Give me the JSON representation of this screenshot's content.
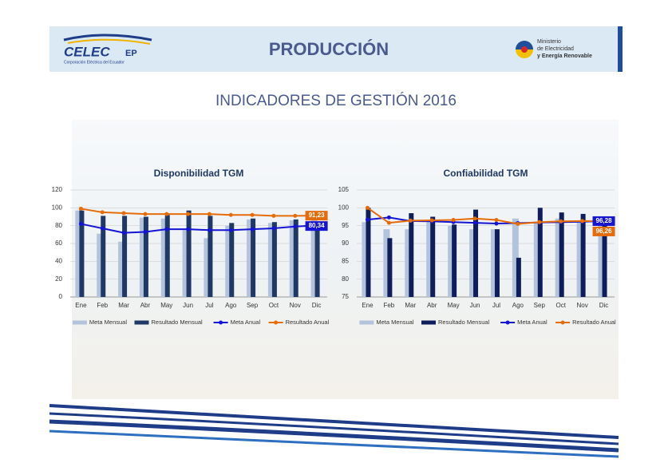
{
  "header": {
    "brand": "CELEC",
    "brand_suffix": "EP",
    "brand_tagline": "Corporación Eléctrica del Ecuador",
    "section": "PRODUCCIÓN",
    "ministry": [
      "Ministerio",
      "de Electricidad",
      "y Energía Renovable"
    ],
    "title": "INDICADORES DE GESTIÓN 2016"
  },
  "chart_data": [
    {
      "type": "bar",
      "title": "Disponibilidad TGM",
      "categories": [
        "Ene",
        "Feb",
        "Mar",
        "Abr",
        "May",
        "Jun",
        "Jul",
        "Ago",
        "Sep",
        "Oct",
        "Nov",
        "Dic"
      ],
      "ylim": [
        0,
        120
      ],
      "yticks": [
        0,
        20,
        40,
        60,
        80,
        100,
        120
      ],
      "grid": true,
      "series": [
        {
          "name": "Meta Mensual",
          "type": "bar",
          "color": "#b4c3dc",
          "values": [
            97,
            71,
            62,
            89,
            88,
            75,
            66,
            80,
            87,
            83,
            86,
            90
          ]
        },
        {
          "name": "Resultado Mensual",
          "type": "bar",
          "color": "#1f3864",
          "values": [
            97,
            91,
            91,
            90,
            92,
            97,
            91,
            83,
            88,
            84,
            87,
            83
          ]
        },
        {
          "name": "Meta Anual",
          "type": "line",
          "color": "#1414d2",
          "values": [
            82,
            77,
            72,
            73,
            76,
            76,
            75,
            75,
            76,
            77,
            79,
            80.34
          ],
          "value_labels": [
            null,
            null,
            null,
            null,
            null,
            null,
            null,
            null,
            null,
            null,
            null,
            "80,34"
          ]
        },
        {
          "name": "Resultado Anual",
          "type": "line",
          "color": "#e46c0a",
          "values": [
            99,
            95,
            94,
            93,
            93,
            93,
            93,
            92,
            92,
            91,
            91,
            91.23
          ],
          "value_labels": [
            null,
            null,
            null,
            null,
            null,
            null,
            null,
            null,
            null,
            null,
            null,
            "91,23"
          ]
        }
      ]
    },
    {
      "type": "bar",
      "title": "Confiabilidad TGM",
      "categories": [
        "Ene",
        "Feb",
        "Mar",
        "Abr",
        "May",
        "Jun",
        "Jul",
        "Ago",
        "Sep",
        "Oct",
        "Nov",
        "Dic"
      ],
      "ylim": [
        75,
        105
      ],
      "yticks": [
        75,
        80,
        85,
        90,
        95,
        100,
        105
      ],
      "grid": true,
      "series": [
        {
          "name": "Meta Mensual",
          "type": "bar",
          "color": "#b4c3dc",
          "values": [
            96,
            94,
            94,
            96,
            95,
            94,
            94,
            97,
            96,
            97,
            96,
            96
          ]
        },
        {
          "name": "Resultado Mensual",
          "type": "bar",
          "color": "#0f1e5a",
          "values": [
            100,
            91.5,
            98.5,
            97.5,
            95.3,
            99.5,
            94,
            86,
            100,
            98.7,
            98.3,
            96
          ]
        },
        {
          "name": "Meta Anual",
          "type": "line",
          "color": "#1414d2",
          "values": [
            96.7,
            97.3,
            96.3,
            96.2,
            96,
            95.8,
            95.6,
            95.7,
            95.9,
            96,
            96.1,
            96.28
          ],
          "value_labels": [
            null,
            null,
            null,
            null,
            null,
            null,
            null,
            null,
            null,
            null,
            null,
            "96,28"
          ]
        },
        {
          "name": "Resultado Anual",
          "type": "line",
          "color": "#e46c0a",
          "values": [
            100,
            95.8,
            96.4,
            96.5,
            96.6,
            97,
            96.6,
            95.5,
            96,
            96.2,
            96.3,
            96.26
          ],
          "value_labels": [
            null,
            null,
            null,
            null,
            null,
            null,
            null,
            null,
            null,
            null,
            null,
            "96,26"
          ]
        }
      ]
    }
  ]
}
